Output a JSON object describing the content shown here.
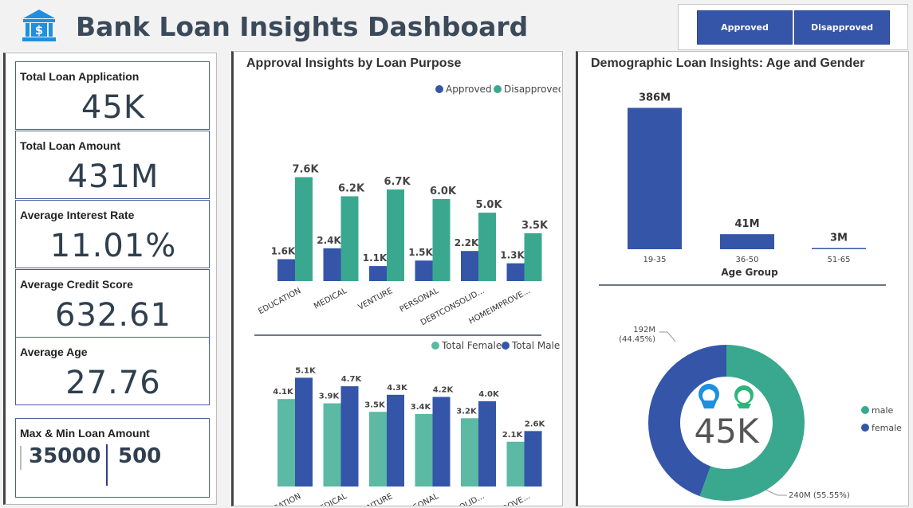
{
  "header": {
    "title": "Bank Loan Insights Dashboard",
    "filters": [
      "Approved",
      "Disapproved"
    ]
  },
  "kpis": {
    "total_loan_application": {
      "label": "Total Loan Application",
      "value": "45K"
    },
    "total_loan_amount": {
      "label": "Total Loan Amount",
      "value": "431M"
    },
    "avg_interest_rate": {
      "label": "Average Interest Rate",
      "value": "11.01%"
    },
    "avg_credit_score": {
      "label": "Average Credit Score",
      "value": "632.61"
    },
    "avg_age": {
      "label": "Average Age",
      "value": "27.76"
    },
    "max_min": {
      "label": "Max & Min Loan Amount",
      "max": "35000",
      "min": "500"
    }
  },
  "colors": {
    "blue": "#3455a8",
    "teal": "#3aa88f",
    "teal_light": "#5bb9a4",
    "dark": "#3b4a5a"
  },
  "icons": [
    "bank-icon",
    "female-icon",
    "male-icon"
  ],
  "chart_data": [
    {
      "type": "bar",
      "title": "Approval Insights by Loan Purpose",
      "categories": [
        "EDUCATION",
        "MEDICAL",
        "VENTURE",
        "PERSONAL",
        "DEBTCONSOLID...",
        "HOMEIMPROVE..."
      ],
      "series": [
        {
          "name": "Approved",
          "values": [
            1.6,
            2.4,
            1.1,
            1.5,
            2.2,
            1.3
          ],
          "labels": [
            "1.6K",
            "2.4K",
            "1.1K",
            "1.5K",
            "2.2K",
            "1.3K"
          ]
        },
        {
          "name": "Disapproved",
          "values": [
            7.6,
            6.2,
            6.7,
            6.0,
            5.0,
            3.5
          ],
          "labels": [
            "7.6K",
            "6.2K",
            "6.7K",
            "6.0K",
            "5.0K",
            "3.5K"
          ]
        }
      ],
      "ylim": [
        0,
        8.5
      ],
      "legend": "top-right"
    },
    {
      "type": "bar",
      "categories": [
        "EDUCATION",
        "MEDICAL",
        "VENTURE",
        "PERSONAL",
        "DEBTCONSOLID...",
        "HOMEIMPROVE..."
      ],
      "series": [
        {
          "name": "Total Female",
          "values": [
            4.1,
            3.9,
            3.5,
            3.4,
            3.2,
            2.1
          ],
          "labels": [
            "4.1K",
            "3.9K",
            "3.5K",
            "3.4K",
            "3.2K",
            "2.1K"
          ]
        },
        {
          "name": "Total Male",
          "values": [
            5.1,
            4.7,
            4.3,
            4.2,
            4.0,
            2.6
          ],
          "labels": [
            "5.1K",
            "4.7K",
            "4.3K",
            "4.2K",
            "4.0K",
            "2.6K"
          ]
        }
      ],
      "ylim": [
        0,
        5.6
      ],
      "legend": "top-right"
    },
    {
      "type": "bar",
      "title": "Demographic Loan Insights: Age and Gender",
      "categories": [
        "19-35",
        "36-50",
        "51-65"
      ],
      "values": [
        386,
        41,
        3
      ],
      "labels": [
        "386M",
        "41M",
        "3M"
      ],
      "xlabel": "Age Group",
      "ylim": [
        0,
        400
      ]
    },
    {
      "type": "pie",
      "slices": [
        {
          "name": "male",
          "value": 240,
          "label": "240M (55.55%)"
        },
        {
          "name": "female",
          "value": 192,
          "label": "192M (44.45%)",
          "label_line2": "(44.45%)",
          "label_line1": "192M"
        }
      ],
      "center_label": "45K",
      "legend": "right"
    }
  ]
}
